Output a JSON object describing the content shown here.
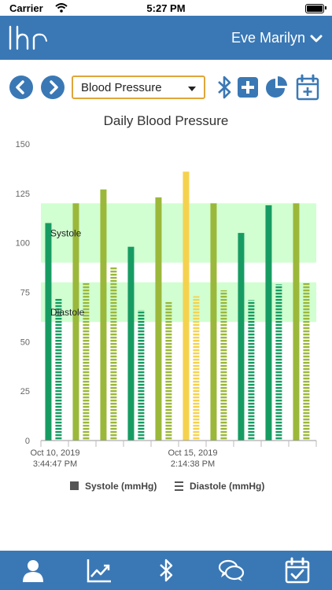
{
  "status_bar": {
    "carrier": "Carrier",
    "time": "5:27 PM"
  },
  "header": {
    "logo_text": "lhr",
    "user_name": "Eve Marilyn"
  },
  "toolbar": {
    "metric_select": "Blood Pressure"
  },
  "chart_data": {
    "type": "bar",
    "title": "Daily Blood Pressure",
    "ylim": [
      0,
      150
    ],
    "yticks": [
      0,
      25,
      50,
      75,
      100,
      125,
      150
    ],
    "x_labels": [
      {
        "index": 0,
        "line1": "Oct 10, 2019",
        "line2": "3:44:47 PM"
      },
      {
        "index": 5,
        "line1": "Oct 15, 2019",
        "line2": "2:14:38 PM"
      }
    ],
    "bands": [
      {
        "label": "Systole",
        "from": 90,
        "to": 120,
        "color": "#ccffcc"
      },
      {
        "label": "Diastole",
        "from": 60,
        "to": 80,
        "color": "#ccffcc"
      }
    ],
    "series": [
      {
        "name": "Systole (mmHg)",
        "style": "solid",
        "values": [
          110,
          120,
          127,
          98,
          123,
          136,
          120,
          105,
          119,
          120
        ]
      },
      {
        "name": "Diastole (mmHg)",
        "style": "striped",
        "values": [
          72,
          80,
          88,
          66,
          70,
          73,
          76,
          71,
          79,
          80
        ]
      }
    ],
    "bar_colors": [
      "#169c62",
      "#9bb83a",
      "#9bb83a",
      "#169c62",
      "#9bb83a",
      "#f5d24e",
      "#9bb83a",
      "#169c62",
      "#169c62",
      "#9bb83a"
    ],
    "legend_position": "bottom"
  },
  "tabs": [
    {
      "name": "profile-icon"
    },
    {
      "name": "trend-chart-icon"
    },
    {
      "name": "bluetooth-icon"
    },
    {
      "name": "chat-icon"
    },
    {
      "name": "calendar-check-icon"
    }
  ]
}
